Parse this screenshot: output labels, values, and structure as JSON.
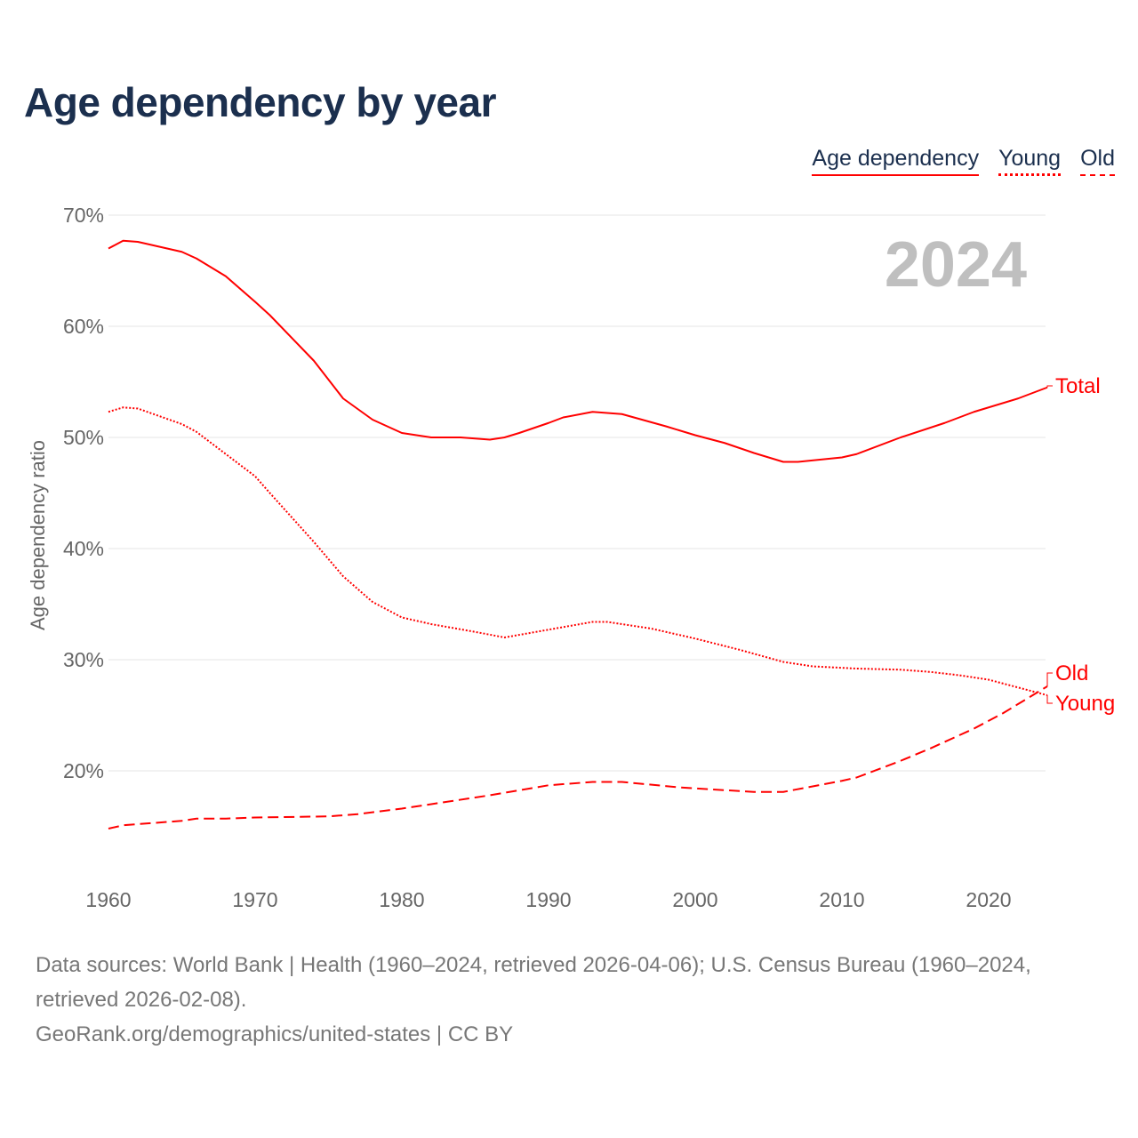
{
  "title": "Age dependency by year",
  "legend": [
    "Age dependency",
    "Young",
    "Old"
  ],
  "year_label": "2024",
  "footer": {
    "sources": "Data sources: World Bank | Health (1960–2024, retrieved 2026-04-06); U.S. Census Bureau (1960–2024, retrieved 2026-02-08).",
    "credit": "GeoRank.org/demographics/united-states | CC BY"
  },
  "colors": {
    "line": "#ff0000",
    "grid": "#e6e6e6",
    "tick": "#666666",
    "year": "#bfbfbf"
  },
  "chart_data": {
    "type": "line",
    "title": "Age dependency by year",
    "xlabel": "",
    "ylabel": "Age dependency ratio",
    "xlim": [
      1960,
      2024
    ],
    "ylim": [
      10,
      70
    ],
    "xticks": [
      "1960",
      "1970",
      "1980",
      "1990",
      "2000",
      "2010",
      "2020"
    ],
    "yticks": [
      "20%",
      "30%",
      "40%",
      "50%",
      "60%",
      "70%"
    ],
    "grid": true,
    "legend_position": "top-right",
    "series": [
      {
        "name": "Total",
        "label": "Total",
        "style": "solid",
        "x": [
          1960,
          1961,
          1962,
          1965,
          1966,
          1968,
          1970,
          1971,
          1974,
          1976,
          1978,
          1980,
          1982,
          1984,
          1986,
          1987,
          1988,
          1990,
          1991,
          1993,
          1995,
          1998,
          2000,
          2002,
          2004,
          2006,
          2007,
          2010,
          2011,
          2014,
          2017,
          2019,
          2022,
          2024
        ],
        "y": [
          67.0,
          67.7,
          67.6,
          66.7,
          66.1,
          64.5,
          62.2,
          61.0,
          56.9,
          53.5,
          51.6,
          50.4,
          50.0,
          50.0,
          49.8,
          50.0,
          50.4,
          51.3,
          51.8,
          52.3,
          52.1,
          51.0,
          50.2,
          49.5,
          48.6,
          47.8,
          47.8,
          48.2,
          48.5,
          50.0,
          51.3,
          52.3,
          53.5,
          54.5
        ]
      },
      {
        "name": "Young",
        "label": "Young",
        "style": "dotted",
        "x": [
          1960,
          1961,
          1962,
          1965,
          1966,
          1968,
          1970,
          1971,
          1974,
          1976,
          1978,
          1980,
          1982,
          1985,
          1987,
          1990,
          1993,
          1994,
          1997,
          2000,
          2003,
          2006,
          2008,
          2011,
          2014,
          2016,
          2018,
          2020,
          2022,
          2024
        ],
        "y": [
          52.3,
          52.7,
          52.6,
          51.2,
          50.5,
          48.5,
          46.5,
          45.0,
          40.6,
          37.5,
          35.2,
          33.8,
          33.2,
          32.5,
          32.0,
          32.7,
          33.4,
          33.4,
          32.8,
          31.9,
          30.9,
          29.8,
          29.4,
          29.2,
          29.1,
          28.9,
          28.6,
          28.2,
          27.5,
          26.8
        ]
      },
      {
        "name": "Old",
        "label": "Old",
        "style": "dashed",
        "x": [
          1960,
          1961,
          1965,
          1966,
          1968,
          1970,
          1975,
          1977,
          1980,
          1986,
          1990,
          1993,
          1995,
          1999,
          2004,
          2006,
          2010,
          2011,
          2014,
          2016,
          2019,
          2021,
          2024
        ],
        "y": [
          14.8,
          15.1,
          15.5,
          15.7,
          15.7,
          15.8,
          15.9,
          16.1,
          16.6,
          17.8,
          18.7,
          19.0,
          19.0,
          18.5,
          18.1,
          18.1,
          19.1,
          19.4,
          20.9,
          22.0,
          23.8,
          25.2,
          27.6
        ]
      }
    ]
  }
}
